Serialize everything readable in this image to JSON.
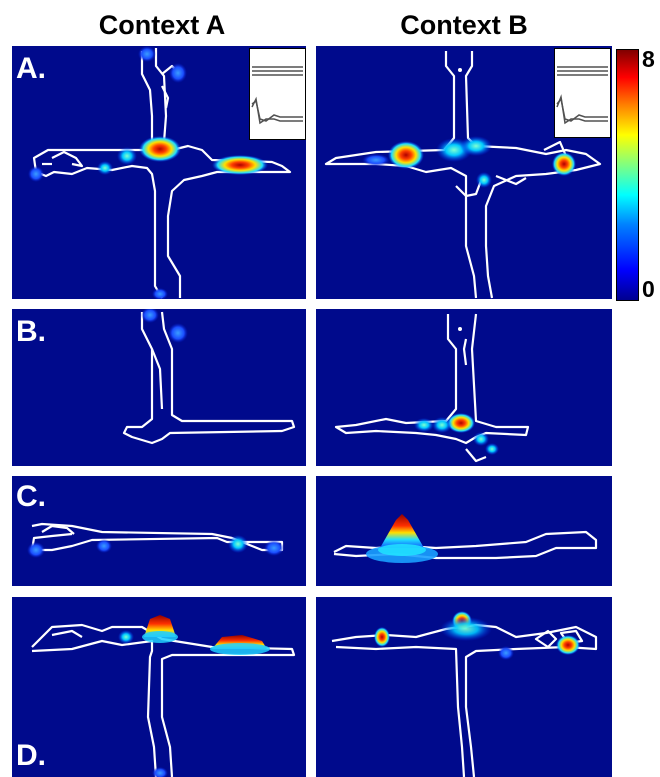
{
  "headers": {
    "context_a": "Context A",
    "context_b": "Context B"
  },
  "rows": [
    {
      "label": "A."
    },
    {
      "label": "B."
    },
    {
      "label": "C."
    },
    {
      "label": "D."
    }
  ],
  "colorbar": {
    "max_label": "8",
    "min_label": "0"
  },
  "colors": {
    "background": "#000a8c",
    "track": "#ffffff"
  }
}
